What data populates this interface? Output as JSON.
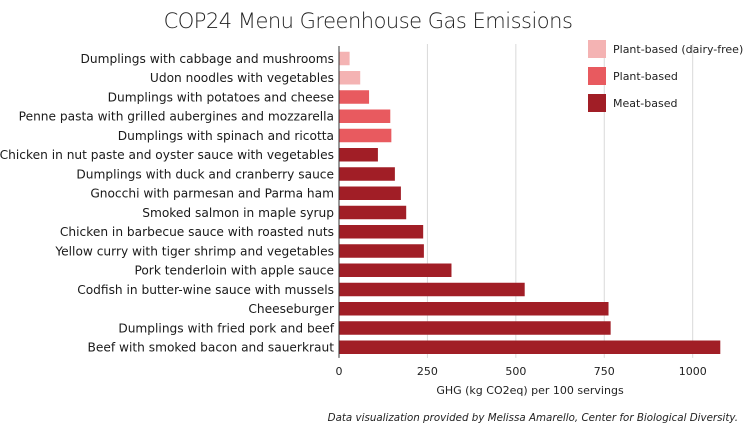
{
  "chart_data": {
    "type": "bar",
    "orientation": "horizontal",
    "title": "COP24 Menu Greenhouse Gas Emissions",
    "xlabel": "GHG (kg CO2eq) per 100 servings",
    "ylabel": "",
    "xlim": [
      0,
      1080
    ],
    "xticks": [
      0,
      250,
      500,
      750,
      1000
    ],
    "grid": true,
    "legend_position": "top-right",
    "legend": [
      {
        "name": "Plant-based (dairy-free)",
        "color": "#f4b3b3"
      },
      {
        "name": "Plant-based",
        "color": "#e85a5f"
      },
      {
        "name": "Meat-based",
        "color": "#a11e26"
      }
    ],
    "categories": [
      "Dumplings with cabbage and mushrooms",
      "Udon noodles with vegetables",
      "Dumplings with potatoes and cheese",
      "Penne pasta with grilled aubergines and mozzarella",
      "Dumplings with spinach and ricotta",
      "Chicken in nut paste and oyster sauce with vegetables",
      "Dumplings with duck and cranberry sauce",
      "Gnocchi with parmesan and Parma ham",
      "Smoked salmon in maple syrup",
      "Chicken in barbecue sauce with roasted nuts",
      "Yellow curry with tiger shrimp and vegetables",
      "Pork tenderloin with apple sauce",
      "Codfish in butter-wine sauce with mussels",
      "Cheeseburger",
      "Dumplings with fried pork and beef",
      "Beef with smoked bacon and sauerkraut"
    ],
    "values": [
      30,
      60,
      85,
      145,
      148,
      110,
      158,
      175,
      190,
      238,
      240,
      318,
      525,
      762,
      768,
      1078
    ],
    "groups": [
      "Plant-based (dairy-free)",
      "Plant-based (dairy-free)",
      "Plant-based",
      "Plant-based",
      "Plant-based",
      "Meat-based",
      "Meat-based",
      "Meat-based",
      "Meat-based",
      "Meat-based",
      "Meat-based",
      "Meat-based",
      "Meat-based",
      "Meat-based",
      "Meat-based",
      "Meat-based"
    ],
    "source_note": "Data visualization provided by Melissa Amarello, Center for Biological Diversity."
  }
}
